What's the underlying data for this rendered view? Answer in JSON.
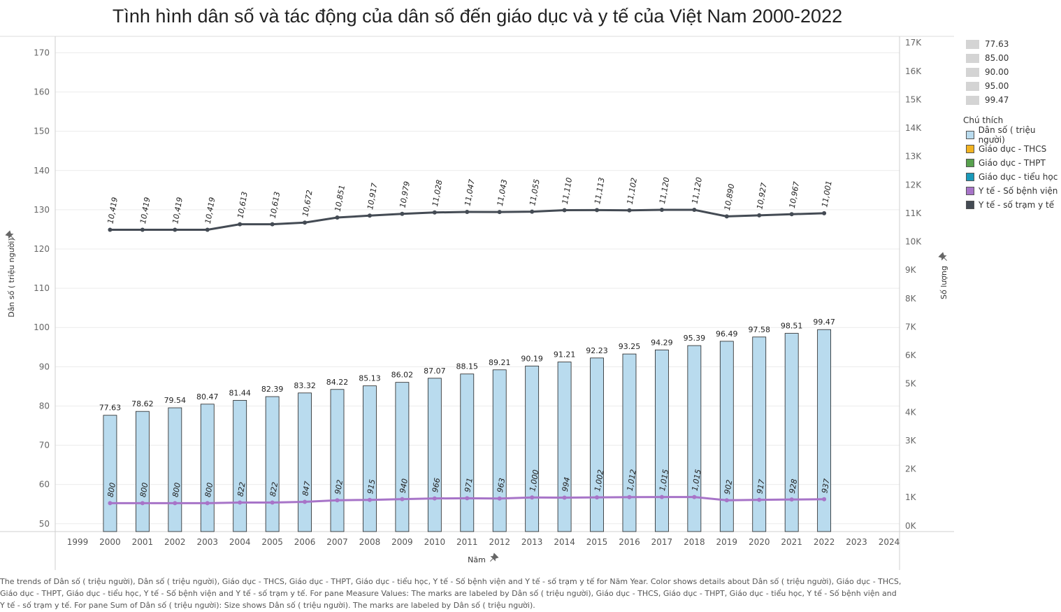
{
  "title": "Tình hình dân số và tác động của dân số đến giáo dục và y tế của Việt Nam 2000-2022",
  "footer_text": "The trends of Dân số ( triệu người), Dân số ( triệu người), Giáo dục - THCS, Giáo dục - THPT, Giáo dục - tiểu học, Y tế - Số bệnh viện and Y tế - số trạm y tế for Năm Year.  Color shows details about Dân số ( triệu người), Giáo dục - THCS, Giáo dục - THPT, Giáo dục - tiểu học, Y tế - Số bệnh viện and Y tế - số trạm y tế.  For pane Measure Values:  The marks are labeled by Dân số ( triệu người), Giáo dục - THCS, Giáo dục - THPT, Giáo dục - tiểu học, Y tế - Số bệnh viện and Y tế - số trạm y tế.  For pane Sum of Dân số ( triệu người):  Size shows Dân số ( triệu người).  The marks are labeled by Dân số ( triệu người).",
  "size_legend": [
    "77.63",
    "85.00",
    "90.00",
    "95.00",
    "99.47"
  ],
  "color_legend": {
    "title": "Chú thích",
    "items": [
      {
        "label": "Dân số ( triệu người)",
        "color": "#b9dbee"
      },
      {
        "label": "Giáo dục - THCS",
        "color": "#f2b321"
      },
      {
        "label": "Giáo dục - THPT",
        "color": "#58a14e"
      },
      {
        "label": "Giáo dục - tiểu học",
        "color": "#1a9aba"
      },
      {
        "label": "Y tế - Số bệnh viện",
        "color": "#a774c8"
      },
      {
        "label": "Y tế - số trạm y tế",
        "color": "#444b54"
      }
    ]
  },
  "chart_data": {
    "type": "bar",
    "xlabel": "Năm",
    "x_ticks": [
      1999,
      2000,
      2001,
      2002,
      2003,
      2004,
      2005,
      2006,
      2007,
      2008,
      2009,
      2010,
      2011,
      2012,
      2013,
      2014,
      2015,
      2016,
      2017,
      2018,
      2019,
      2020,
      2021,
      2022,
      2023,
      2024
    ],
    "categories": [
      2000,
      2001,
      2002,
      2003,
      2004,
      2005,
      2006,
      2007,
      2008,
      2009,
      2010,
      2011,
      2012,
      2013,
      2014,
      2015,
      2016,
      2017,
      2018,
      2019,
      2020,
      2021,
      2022
    ],
    "left_axis": {
      "label": "Dân số ( triệu người)",
      "ylim": [
        48,
        174
      ],
      "ticks": [
        50,
        60,
        70,
        80,
        90,
        100,
        110,
        120,
        130,
        140,
        150,
        160,
        170
      ]
    },
    "right_axis": {
      "label": "Số lượng",
      "ylim": [
        -200,
        17200
      ],
      "ticks": [
        0,
        1000,
        2000,
        3000,
        4000,
        5000,
        6000,
        7000,
        8000,
        9000,
        10000,
        11000,
        12000,
        13000,
        14000,
        15000,
        16000,
        17000
      ],
      "tick_labels": [
        "0K",
        "1K",
        "2K",
        "3K",
        "4K",
        "5K",
        "6K",
        "7K",
        "8K",
        "9K",
        "10K",
        "11K",
        "12K",
        "13K",
        "14K",
        "15K",
        "16K",
        "17K"
      ]
    },
    "series": [
      {
        "name": "Dân số ( triệu người)",
        "type": "bar",
        "axis": "left",
        "color": "#b9dbee",
        "values": [
          77.63,
          78.62,
          79.54,
          80.47,
          81.44,
          82.39,
          83.32,
          84.22,
          85.13,
          86.02,
          87.07,
          88.15,
          89.21,
          90.19,
          91.21,
          92.23,
          93.25,
          94.29,
          95.39,
          96.49,
          97.58,
          98.51,
          99.47
        ],
        "labels": [
          "77.63",
          "78.62",
          "79.54",
          "80.47",
          "81.44",
          "82.39",
          "83.32",
          "84.22",
          "85.13",
          "86.02",
          "87.07",
          "88.15",
          "89.21",
          "90.19",
          "91.21",
          "92.23",
          "93.25",
          "94.29",
          "95.39",
          "96.49",
          "97.58",
          "98.51",
          "99.47"
        ]
      },
      {
        "name": "Y tế - Số bệnh viện",
        "type": "line",
        "axis": "right",
        "color": "#a774c8",
        "values": [
          800,
          800,
          800,
          800,
          822,
          822,
          847,
          902,
          915,
          940,
          966,
          971,
          963,
          1000,
          994,
          1002,
          1012,
          1015,
          1015,
          902,
          917,
          928,
          937
        ],
        "labels": [
          "800",
          "800",
          "800",
          "800",
          "822",
          "822",
          "847",
          "902",
          "915",
          "940",
          "966",
          "971",
          "963",
          "1,000",
          "994",
          "1,002",
          "1,012",
          "1,015",
          "1,015",
          "902",
          "917",
          "928",
          "937"
        ]
      },
      {
        "name": "Y tế - số trạm y tế",
        "type": "line",
        "axis": "right",
        "color": "#444b54",
        "values": [
          10419,
          10419,
          10419,
          10419,
          10613,
          10613,
          10672,
          10851,
          10917,
          10979,
          11028,
          11047,
          11043,
          11055,
          11110,
          11113,
          11102,
          11120,
          11120,
          10890,
          10927,
          10967,
          11001
        ],
        "labels": [
          "10,419",
          "10,419",
          "10,419",
          "10,419",
          "10,613",
          "10,613",
          "10,672",
          "10,851",
          "10,917",
          "10,979",
          "11,028",
          "11,047",
          "11,043",
          "11,055",
          "11,110",
          "11,113",
          "11,102",
          "11,120",
          "11,120",
          "10,890",
          "10,927",
          "10,967",
          "11,001"
        ]
      }
    ]
  }
}
